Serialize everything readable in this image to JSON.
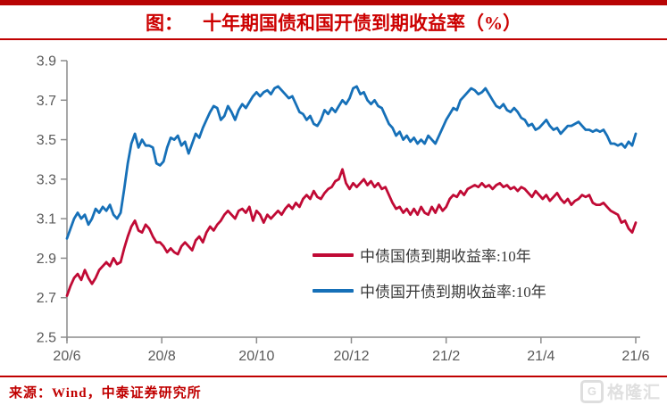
{
  "title": {
    "tag": "图：",
    "text": "十年期国债和国开债到期收益率（%）"
  },
  "source": "来源：Wind，中泰证券研究所",
  "watermark": {
    "icon_letter": "G",
    "label": "格隆汇"
  },
  "colors": {
    "accent_red": "#C00000",
    "treasury_line": "#C00A35",
    "cdb_line": "#1670B8",
    "axis": "#8C8C8C",
    "tick_label": "#595959",
    "legend_text": "#3A3A3A",
    "watermark_gray": "#DEDEDE"
  },
  "chart_data": {
    "type": "line",
    "title": "十年期国债和国开债到期收益率（%）",
    "xlabel": "",
    "ylabel": "",
    "grid": false,
    "legend_position": "inside-center-right",
    "ylim": [
      2.5,
      3.9
    ],
    "y_tick_labels": [
      "2.5",
      "2.7",
      "2.9",
      "3.1",
      "3.3",
      "3.5",
      "3.7",
      "3.9"
    ],
    "x_tick_labels": [
      "20/6",
      "20/8",
      "20/10",
      "20/12",
      "21/2",
      "21/4",
      "21/6"
    ],
    "series": [
      {
        "name": "中债国债到期收益率:10年",
        "color": "#C00A35",
        "values": [
          2.71,
          2.76,
          2.8,
          2.82,
          2.79,
          2.84,
          2.8,
          2.77,
          2.8,
          2.84,
          2.86,
          2.88,
          2.86,
          2.9,
          2.87,
          2.88,
          2.95,
          3.01,
          3.06,
          3.09,
          3.04,
          3.03,
          3.07,
          3.05,
          3.01,
          2.98,
          2.98,
          2.96,
          2.93,
          2.95,
          2.93,
          2.92,
          2.96,
          2.98,
          2.96,
          2.94,
          2.99,
          3.01,
          2.98,
          3.03,
          3.06,
          3.04,
          3.07,
          3.09,
          3.12,
          3.14,
          3.12,
          3.1,
          3.14,
          3.15,
          3.13,
          3.16,
          3.09,
          3.14,
          3.12,
          3.08,
          3.12,
          3.1,
          3.12,
          3.14,
          3.12,
          3.15,
          3.17,
          3.15,
          3.18,
          3.16,
          3.2,
          3.22,
          3.2,
          3.24,
          3.21,
          3.2,
          3.23,
          3.25,
          3.26,
          3.29,
          3.3,
          3.35,
          3.28,
          3.25,
          3.28,
          3.26,
          3.28,
          3.3,
          3.27,
          3.29,
          3.26,
          3.28,
          3.25,
          3.26,
          3.22,
          3.18,
          3.15,
          3.16,
          3.13,
          3.15,
          3.12,
          3.15,
          3.12,
          3.16,
          3.13,
          3.12,
          3.16,
          3.13,
          3.17,
          3.14,
          3.16,
          3.2,
          3.22,
          3.21,
          3.24,
          3.22,
          3.25,
          3.26,
          3.27,
          3.26,
          3.28,
          3.26,
          3.27,
          3.25,
          3.27,
          3.28,
          3.26,
          3.27,
          3.25,
          3.26,
          3.24,
          3.26,
          3.25,
          3.23,
          3.21,
          3.24,
          3.22,
          3.2,
          3.22,
          3.19,
          3.21,
          3.23,
          3.2,
          3.18,
          3.2,
          3.17,
          3.19,
          3.2,
          3.22,
          3.21,
          3.22,
          3.18,
          3.17,
          3.17,
          3.18,
          3.16,
          3.14,
          3.13,
          3.12,
          3.08,
          3.09,
          3.05,
          3.03,
          3.08
        ]
      },
      {
        "name": "中债国开债到期收益率:10年",
        "color": "#1670B8",
        "values": [
          3.0,
          3.05,
          3.1,
          3.13,
          3.1,
          3.12,
          3.07,
          3.1,
          3.15,
          3.13,
          3.16,
          3.14,
          3.17,
          3.12,
          3.1,
          3.13,
          3.25,
          3.38,
          3.48,
          3.53,
          3.46,
          3.5,
          3.47,
          3.47,
          3.46,
          3.38,
          3.37,
          3.39,
          3.46,
          3.51,
          3.5,
          3.52,
          3.47,
          3.49,
          3.43,
          3.48,
          3.53,
          3.51,
          3.56,
          3.6,
          3.64,
          3.67,
          3.66,
          3.6,
          3.62,
          3.67,
          3.64,
          3.6,
          3.65,
          3.68,
          3.66,
          3.69,
          3.72,
          3.74,
          3.72,
          3.74,
          3.75,
          3.73,
          3.76,
          3.77,
          3.75,
          3.73,
          3.71,
          3.72,
          3.68,
          3.64,
          3.63,
          3.6,
          3.62,
          3.58,
          3.57,
          3.6,
          3.65,
          3.63,
          3.66,
          3.64,
          3.67,
          3.7,
          3.68,
          3.71,
          3.76,
          3.77,
          3.73,
          3.74,
          3.7,
          3.68,
          3.7,
          3.67,
          3.66,
          3.62,
          3.58,
          3.56,
          3.52,
          3.54,
          3.5,
          3.52,
          3.49,
          3.51,
          3.48,
          3.5,
          3.48,
          3.52,
          3.5,
          3.48,
          3.52,
          3.56,
          3.6,
          3.63,
          3.66,
          3.65,
          3.7,
          3.72,
          3.74,
          3.76,
          3.75,
          3.73,
          3.74,
          3.76,
          3.73,
          3.7,
          3.67,
          3.66,
          3.68,
          3.65,
          3.64,
          3.66,
          3.64,
          3.61,
          3.6,
          3.57,
          3.58,
          3.55,
          3.56,
          3.58,
          3.6,
          3.57,
          3.55,
          3.56,
          3.53,
          3.55,
          3.57,
          3.57,
          3.58,
          3.59,
          3.57,
          3.55,
          3.55,
          3.54,
          3.55,
          3.54,
          3.55,
          3.52,
          3.48,
          3.48,
          3.47,
          3.48,
          3.46,
          3.49,
          3.47,
          3.53
        ]
      }
    ]
  }
}
